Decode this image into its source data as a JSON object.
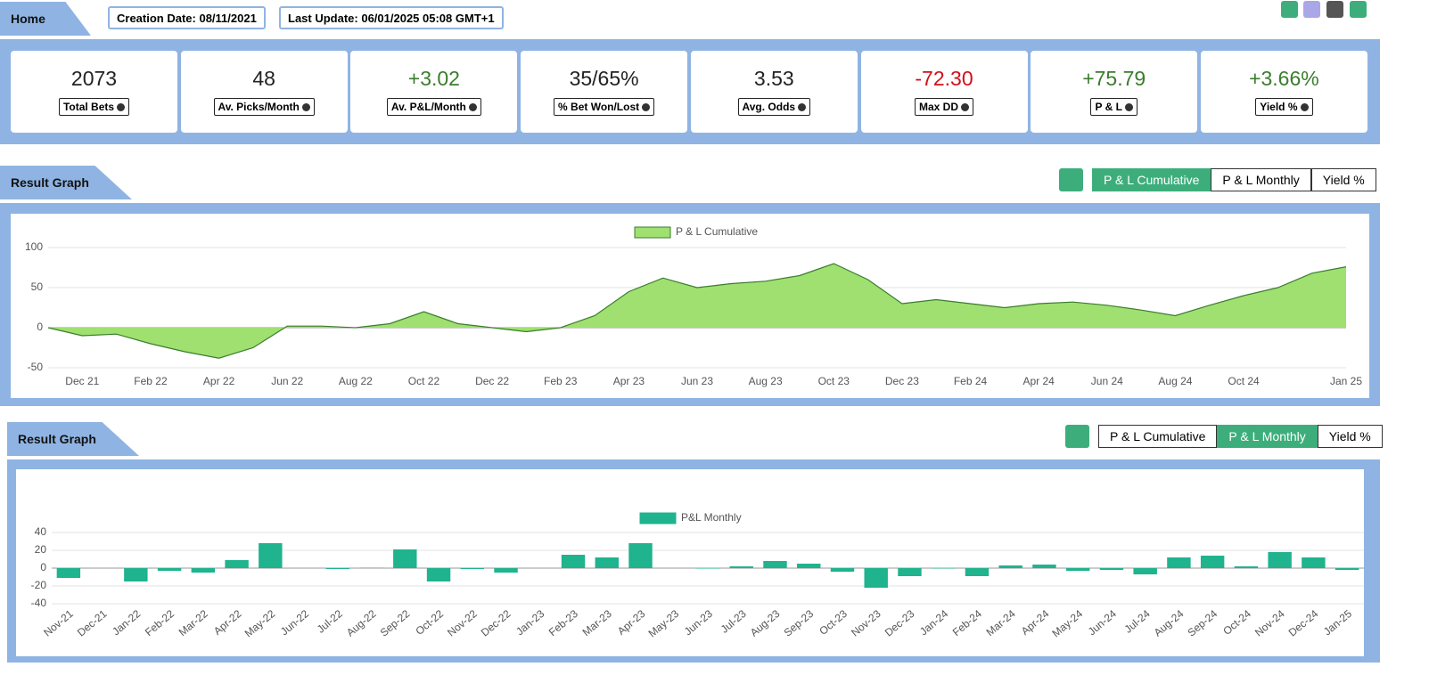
{
  "header": {
    "title": "Home",
    "creation": "Creation Date: 08/11/2021",
    "update": "Last Update: 06/01/2025 05:08 GMT+1"
  },
  "stats": [
    {
      "value": "2073",
      "label": "Total Bets",
      "color": "#222222"
    },
    {
      "value": "48",
      "label": "Av. Picks/Month",
      "color": "#222222"
    },
    {
      "value": "+3.02",
      "label": "Av. P&L/Month",
      "color": "#3a7d2c"
    },
    {
      "value": "35/65%",
      "label": "% Bet Won/Lost",
      "color": "#222222"
    },
    {
      "value": "3.53",
      "label": "Avg. Odds",
      "color": "#222222"
    },
    {
      "value": "-72.30",
      "label": "Max DD",
      "color": "#d0101a"
    },
    {
      "value": "+75.79",
      "label": "P & L",
      "color": "#3a7d2c"
    },
    {
      "value": "+3.66%",
      "label": "Yield %",
      "color": "#3a7d2c"
    }
  ],
  "sections": [
    {
      "title": "Result Graph",
      "tabs": [
        "P & L Cumulative",
        "P & L Monthly",
        "Yield %"
      ],
      "active": 0
    },
    {
      "title": "Result Graph",
      "tabs": [
        "P & L Cumulative",
        "P & L Monthly",
        "Yield %"
      ],
      "active": 1
    }
  ],
  "chart_data": [
    {
      "type": "area",
      "categories": [
        null,
        "Dec 21",
        null,
        "Feb 22",
        null,
        "Apr 22",
        null,
        "Jun 22",
        null,
        "Aug 22",
        null,
        "Oct 22",
        null,
        "Dec 22",
        null,
        "Feb 23",
        null,
        "Apr 23",
        null,
        "Jun 23",
        null,
        "Aug 23",
        null,
        "Oct 23",
        null,
        "Dec 23",
        null,
        "Feb 24",
        null,
        "Apr 24",
        null,
        "Jun 24",
        null,
        "Aug 24",
        null,
        "Oct 24",
        null,
        null,
        "Jan 25"
      ],
      "series": [
        {
          "name": "P & L Cumulative",
          "color": "#9fe070",
          "line_color": "#3a7d2c",
          "values": [
            0,
            -10,
            -8,
            -20,
            -30,
            -38,
            -25,
            2,
            2,
            0,
            5,
            20,
            5,
            0,
            -5,
            0,
            15,
            45,
            62,
            50,
            55,
            58,
            65,
            80,
            60,
            30,
            35,
            30,
            25,
            30,
            32,
            28,
            22,
            15,
            28,
            40,
            50,
            68,
            76
          ]
        }
      ],
      "ylim": [
        -50,
        100
      ],
      "yticks": [
        -50,
        0,
        50,
        100
      ],
      "grid": true
    },
    {
      "type": "bar",
      "categories": [
        "Nov-21",
        "Dec-21",
        "Jan-22",
        "Feb-22",
        "Mar-22",
        "Apr-22",
        "May-22",
        "Jun-22",
        "Jul-22",
        "Aug-22",
        "Sep-22",
        "Oct-22",
        "Nov-22",
        "Dec-22",
        "Jan-23",
        "Feb-23",
        "Mar-23",
        "Apr-23",
        "May-23",
        "Jun-23",
        "Jul-23",
        "Aug-23",
        "Sep-23",
        "Oct-23",
        "Nov-23",
        "Dec-23",
        "Jan-24",
        "Feb-24",
        "Mar-24",
        "Apr-24",
        "May-24",
        "Jun-24",
        "Jul-24",
        "Aug-24",
        "Sep-24",
        "Oct-24",
        "Nov-24",
        "Dec-24",
        "Jan-25"
      ],
      "series": [
        {
          "name": "P&L Monthly",
          "color": "#1fb38e",
          "values": [
            -11,
            0,
            -15,
            -3,
            -5,
            9,
            28,
            0,
            -1,
            0.5,
            21,
            -15,
            -1,
            -5,
            0,
            15,
            12,
            28,
            0,
            -0.5,
            2,
            8,
            5,
            -4,
            -22,
            -9,
            -0.5,
            -9,
            3,
            4,
            -3,
            -2,
            -7,
            12,
            14,
            2,
            18,
            12,
            -2
          ]
        }
      ],
      "ylim": [
        -40,
        40
      ],
      "yticks": [
        -40,
        -20,
        0,
        20,
        40
      ],
      "grid": true
    }
  ]
}
